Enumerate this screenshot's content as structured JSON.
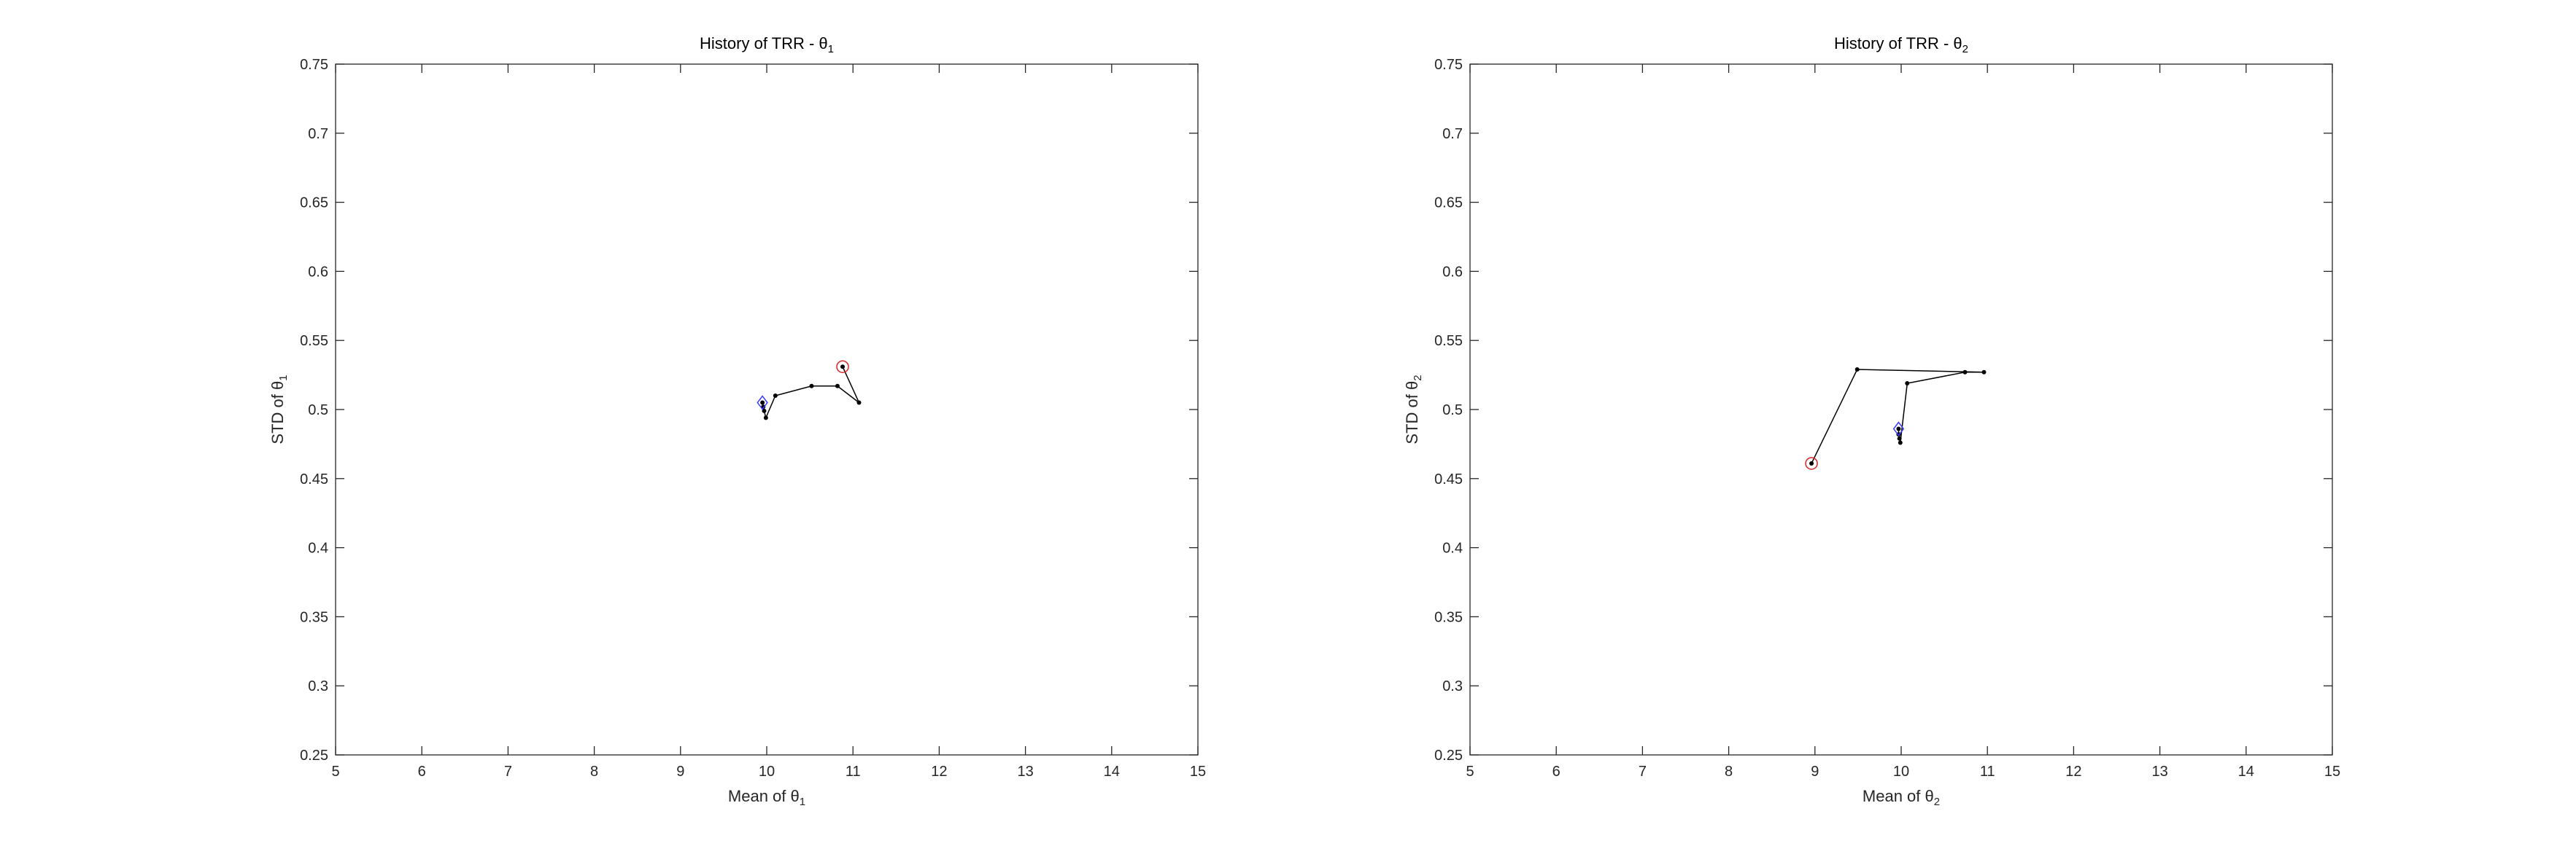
{
  "chart_data": [
    {
      "type": "line",
      "title": "History of TRR - θ",
      "title_sub": "1",
      "xlabel": "Mean of θ",
      "xlabel_sub": "1",
      "ylabel": "STD of θ",
      "ylabel_sub": "1",
      "xlim": [
        5,
        15
      ],
      "ylim": [
        0.25,
        0.75
      ],
      "xticks": [
        "5",
        "6",
        "7",
        "8",
        "9",
        "10",
        "11",
        "12",
        "13",
        "14",
        "15"
      ],
      "yticks": [
        "0.25",
        "0.3",
        "0.35",
        "0.4",
        "0.45",
        "0.5",
        "0.55",
        "0.6",
        "0.65",
        "0.7",
        "0.75"
      ],
      "grid": false,
      "path": [
        {
          "x": 10.88,
          "y": 0.531
        },
        {
          "x": 11.07,
          "y": 0.505
        },
        {
          "x": 10.82,
          "y": 0.517
        },
        {
          "x": 10.52,
          "y": 0.517
        },
        {
          "x": 10.1,
          "y": 0.51
        },
        {
          "x": 9.99,
          "y": 0.494
        },
        {
          "x": 9.97,
          "y": 0.499
        },
        {
          "x": 9.96,
          "y": 0.502
        },
        {
          "x": 9.95,
          "y": 0.505
        }
      ],
      "start": {
        "x": 10.88,
        "y": 0.531
      },
      "end": {
        "x": 9.95,
        "y": 0.505
      },
      "line_color": "#000000",
      "start_marker_color": "#d62728",
      "end_marker_color": "#3b3bff"
    },
    {
      "type": "line",
      "title": "History of TRR - θ",
      "title_sub": "2",
      "xlabel": "Mean of θ",
      "xlabel_sub": "2",
      "ylabel": "STD of θ",
      "ylabel_sub": "2",
      "xlim": [
        5,
        15
      ],
      "ylim": [
        0.25,
        0.75
      ],
      "xticks": [
        "5",
        "6",
        "7",
        "8",
        "9",
        "10",
        "11",
        "12",
        "13",
        "14",
        "15"
      ],
      "yticks": [
        "0.25",
        "0.3",
        "0.35",
        "0.4",
        "0.45",
        "0.5",
        "0.55",
        "0.6",
        "0.65",
        "0.7",
        "0.75"
      ],
      "grid": false,
      "path": [
        {
          "x": 8.96,
          "y": 0.461
        },
        {
          "x": 9.49,
          "y": 0.529
        },
        {
          "x": 10.96,
          "y": 0.527
        },
        {
          "x": 10.74,
          "y": 0.527
        },
        {
          "x": 10.07,
          "y": 0.519
        },
        {
          "x": 9.99,
          "y": 0.476
        },
        {
          "x": 9.98,
          "y": 0.479
        },
        {
          "x": 9.97,
          "y": 0.482
        },
        {
          "x": 9.97,
          "y": 0.486
        }
      ],
      "start": {
        "x": 8.96,
        "y": 0.461
      },
      "end": {
        "x": 9.97,
        "y": 0.486
      },
      "line_color": "#000000",
      "start_marker_color": "#d62728",
      "end_marker_color": "#3b3bff"
    }
  ]
}
